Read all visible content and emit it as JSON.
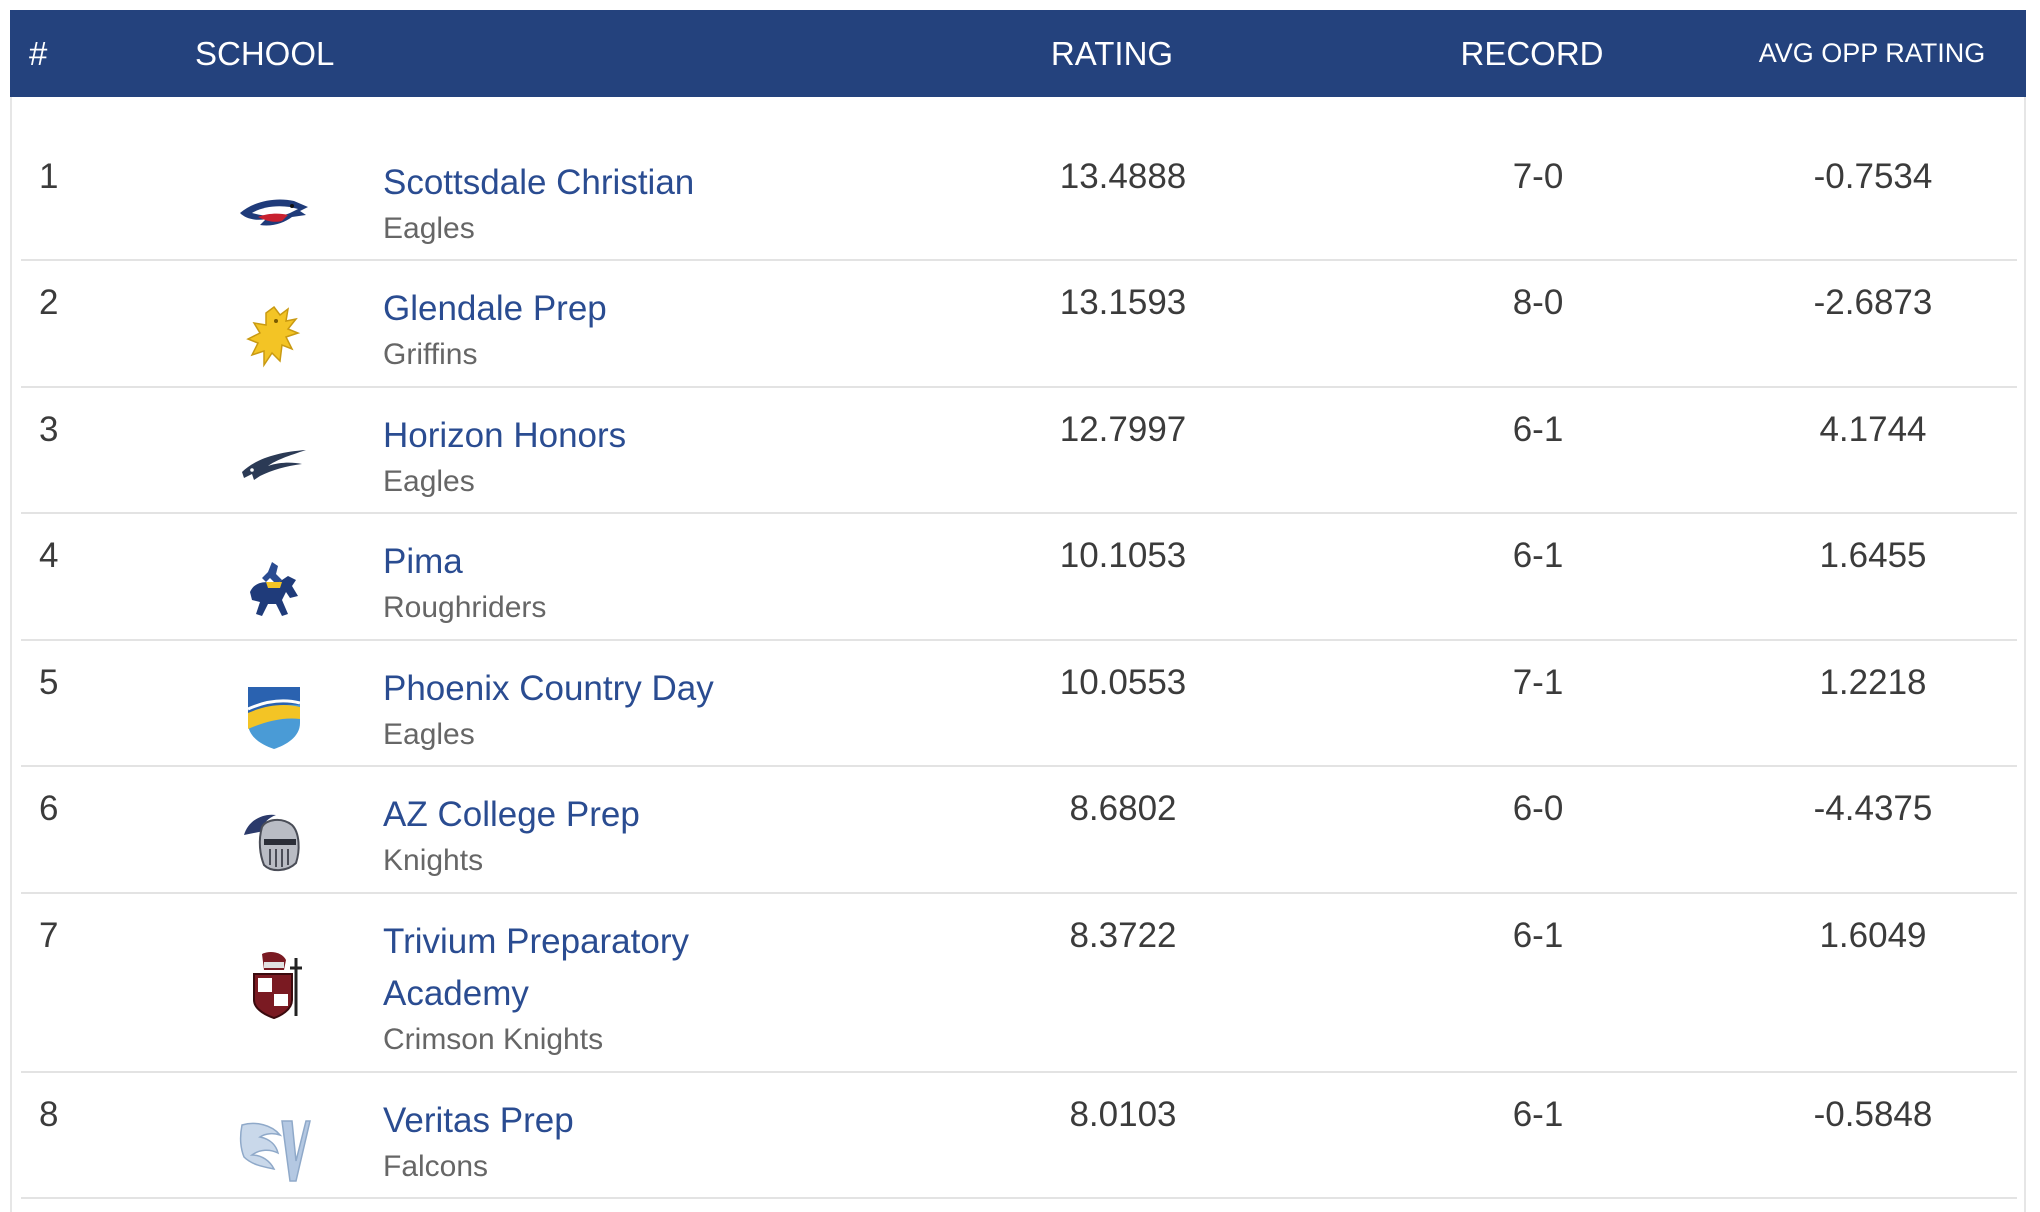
{
  "header": {
    "rank": "#",
    "school": "SCHOOL",
    "rating": "RATING",
    "record": "RECORD",
    "avg_opp_rating": "AVG OPP RATING"
  },
  "rows": [
    {
      "rank": "1",
      "school": "Scottsdale Christian",
      "mascot": "Eagles",
      "rating": "13.4888",
      "record": "7-0",
      "avg_opp": "-0.7534",
      "logo": "eagle-head-red-white-blue"
    },
    {
      "rank": "2",
      "school": "Glendale Prep",
      "mascot": "Griffins",
      "rating": "13.1593",
      "record": "8-0",
      "avg_opp": "-2.6873",
      "logo": "gold-griffin"
    },
    {
      "rank": "3",
      "school": "Horizon Honors",
      "mascot": "Eagles",
      "rating": "12.7997",
      "record": "6-1",
      "avg_opp": "4.1744",
      "logo": "navy-eagle-swoosh"
    },
    {
      "rank": "4",
      "school": "Pima",
      "mascot": "Roughriders",
      "rating": "10.1053",
      "record": "6-1",
      "avg_opp": "1.6455",
      "logo": "bucking-horse-rider"
    },
    {
      "rank": "5",
      "school": "Phoenix Country Day",
      "mascot": "Eagles",
      "rating": "10.0553",
      "record": "7-1",
      "avg_opp": "1.2218",
      "logo": "blue-gold-shield"
    },
    {
      "rank": "6",
      "school": "AZ College Prep",
      "mascot": "Knights",
      "rating": "8.6802",
      "record": "6-0",
      "avg_opp": "-4.4375",
      "logo": "knight-helmet"
    },
    {
      "rank": "7",
      "school": "Trivium Preparatory Academy",
      "school_line1": "Trivium Preparatory",
      "school_line2": "Academy",
      "mascot": "Crimson Knights",
      "rating": "8.3722",
      "record": "6-1",
      "avg_opp": "1.6049",
      "logo": "crimson-knight"
    },
    {
      "rank": "8",
      "school": "Veritas Prep",
      "mascot": "Falcons",
      "rating": "8.0103",
      "record": "6-1",
      "avg_opp": "-0.5848",
      "logo": "falcon-v"
    }
  ],
  "colors": {
    "header_bg": "#24427d",
    "link": "#2a4c91",
    "text": "#3b3b3b",
    "subtext": "#666666"
  }
}
